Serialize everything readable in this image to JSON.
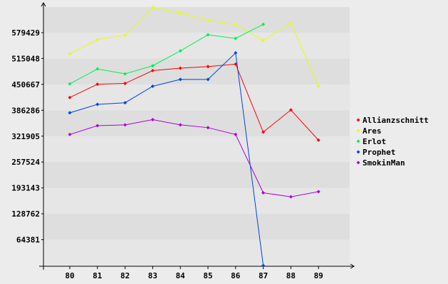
{
  "chart_data": {
    "type": "line",
    "title": "",
    "xlabel": "",
    "ylabel": "",
    "categories": [
      "80",
      "81",
      "82",
      "83",
      "84",
      "85",
      "86",
      "87",
      "88",
      "89"
    ],
    "y_ticks": [
      "64381",
      "128762",
      "193143",
      "257524",
      "321905",
      "386286",
      "450667",
      "515048",
      "579429"
    ],
    "ylim": [
      0,
      643810
    ],
    "grid": "horizontal alternating bands",
    "legend_position": "right",
    "series": [
      {
        "name": "Allianzschnitt",
        "color": "#ff0000",
        "values": [
          418000,
          451000,
          453000,
          485000,
          491000,
          495000,
          501000,
          332000,
          387000,
          312000
        ]
      },
      {
        "name": "Ares",
        "color": "#e6ff00",
        "values": [
          527000,
          562000,
          573000,
          642000,
          628000,
          610000,
          600000,
          560000,
          603000,
          446000
        ]
      },
      {
        "name": "Erlot",
        "color": "#00ee55",
        "values": [
          452000,
          489000,
          477000,
          497000,
          534000,
          574000,
          565000,
          600000,
          null,
          null
        ]
      },
      {
        "name": "Prophet",
        "color": "#0044dd",
        "values": [
          380000,
          401000,
          405000,
          446000,
          463000,
          463000,
          529000,
          0,
          null,
          null
        ]
      },
      {
        "name": "SmokinMan",
        "color": "#aa00dd",
        "values": [
          326000,
          348000,
          350000,
          363000,
          350000,
          343000,
          326000,
          181000,
          171000,
          184000
        ]
      }
    ]
  }
}
